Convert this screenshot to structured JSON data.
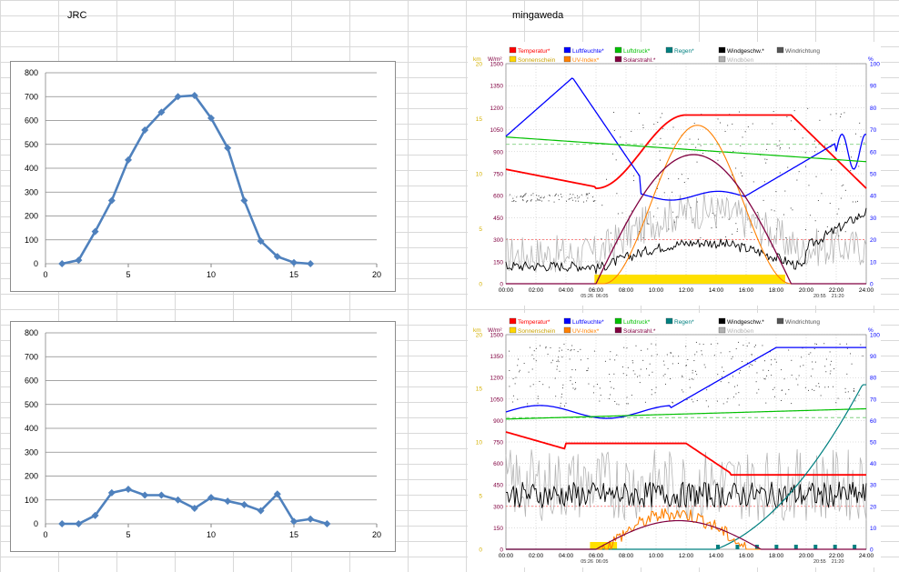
{
  "sheet": {
    "label_left": "JRC",
    "label_right": "mingaweda"
  },
  "chart_data": [
    {
      "type": "line",
      "x": [
        1,
        2,
        3,
        4,
        5,
        6,
        7,
        8,
        9,
        10,
        11,
        12,
        13,
        14,
        15,
        16
      ],
      "values": [
        0,
        15,
        135,
        265,
        435,
        560,
        635,
        700,
        705,
        610,
        485,
        265,
        95,
        30,
        5,
        0
      ],
      "xlim": [
        0,
        20
      ],
      "ylim": [
        0,
        800
      ],
      "xticks": [
        "0",
        "5",
        "10",
        "15",
        "20"
      ],
      "yticks": [
        "0",
        "100",
        "200",
        "300",
        "400",
        "500",
        "600",
        "700",
        "800"
      ],
      "color": "#4f81bd",
      "grid": "horizontal",
      "marker": "diamond"
    },
    {
      "type": "line",
      "x": [
        1,
        2,
        3,
        4,
        5,
        6,
        7,
        8,
        9,
        10,
        11,
        12,
        13,
        14,
        15,
        16,
        17
      ],
      "values": [
        0,
        0,
        35,
        130,
        145,
        120,
        120,
        100,
        65,
        110,
        95,
        80,
        55,
        125,
        10,
        20,
        0
      ],
      "xlim": [
        0,
        20
      ],
      "ylim": [
        0,
        800
      ],
      "xticks": [
        "0",
        "5",
        "10",
        "15",
        "20"
      ],
      "yticks": [
        "0",
        "100",
        "200",
        "300",
        "400",
        "500",
        "600",
        "700",
        "800"
      ],
      "color": "#4f81bd",
      "grid": "horizontal",
      "marker": "diamond"
    }
  ],
  "weather": {
    "legend": [
      {
        "label": "Temperatur*",
        "color": "#ff0000"
      },
      {
        "label": "Luftfeuchte*",
        "color": "#0000ff"
      },
      {
        "label": "Luftdruck*",
        "color": "#00c000"
      },
      {
        "label": "Regen*",
        "color": "#008080"
      },
      {
        "label": "Windgeschw.*",
        "color": "#000000"
      },
      {
        "label": "Windrichtung",
        "color": "#555555"
      },
      {
        "label": "Sonnenschein",
        "color": "#ffd700"
      },
      {
        "label": "UV-Index*",
        "color": "#ff8000"
      },
      {
        "label": "Solarstrahl.*",
        "color": "#800040"
      },
      {
        "label": "Windböen",
        "color": "#b0b0b0"
      }
    ],
    "unit_left": "W/m²",
    "unit_left2": "km",
    "unit_right": "%",
    "left_ticks": [
      "0",
      "150",
      "300",
      "450",
      "600",
      "750",
      "900",
      "1050",
      "1200",
      "1350",
      "1500"
    ],
    "left_ticks2": [
      "0",
      "5",
      "10",
      "15",
      "20"
    ],
    "right_ticks": [
      "0",
      "10",
      "20",
      "30",
      "40",
      "50",
      "60",
      "70",
      "80",
      "90",
      "100"
    ],
    "time_ticks": [
      "00:00",
      "02:00",
      "04:00",
      "06:00",
      "08:00",
      "10:00",
      "12:00",
      "14:00",
      "16:00",
      "18:00",
      "20:00",
      "22:00",
      "24:00"
    ],
    "panel1_sun": {
      "rise": "05:26",
      "rise2": "06:05",
      "set": "20:55",
      "set2": "21:20"
    },
    "panel2_sun": {
      "rise": "05:26",
      "rise2": "06:05",
      "set": "20:55",
      "set2": "21:20"
    }
  }
}
